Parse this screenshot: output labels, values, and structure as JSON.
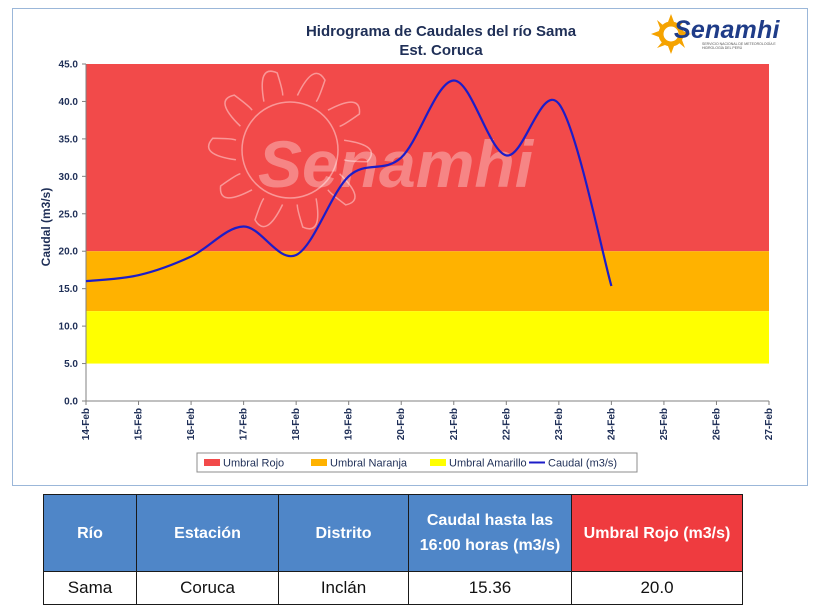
{
  "chart_data": {
    "type": "line",
    "title": "Hidrograma de Caudales del río Sama",
    "subtitle": "Est. Coruca",
    "xlabel": "",
    "ylabel": "Caudal (m3/s)",
    "ylim": [
      0,
      45
    ],
    "y_ticks": [
      "0.0",
      "5.0",
      "10.0",
      "15.0",
      "20.0",
      "25.0",
      "30.0",
      "35.0",
      "40.0",
      "45.0"
    ],
    "x_ticks": [
      "14-Feb",
      "15-Feb",
      "16-Feb",
      "17-Feb",
      "18-Feb",
      "19-Feb",
      "20-Feb",
      "21-Feb",
      "22-Feb",
      "23-Feb",
      "24-Feb",
      "25-Feb",
      "26-Feb",
      "27-Feb"
    ],
    "bands": [
      {
        "name": "Umbral Rojo",
        "from": 20,
        "to": 45,
        "color": "#f24a4a"
      },
      {
        "name": "Umbral Naranja",
        "from": 12,
        "to": 20,
        "color": "#ffb200"
      },
      {
        "name": "Umbral Amarillo",
        "from": 5,
        "to": 12,
        "color": "#ffff00"
      }
    ],
    "series": [
      {
        "name": "Caudal (m3/s)",
        "color": "#1d1dc8",
        "x": [
          0,
          1,
          2,
          3,
          4,
          5,
          6,
          7,
          8,
          9,
          10
        ],
        "values": [
          16.0,
          16.8,
          19.3,
          23.3,
          19.5,
          30.0,
          32.5,
          42.8,
          32.8,
          39.7,
          15.36
        ]
      }
    ],
    "legend": {
      "position": "bottom",
      "items": [
        {
          "label": "Umbral Rojo",
          "color": "#f24a4a",
          "kind": "box"
        },
        {
          "label": "Umbral Naranja",
          "color": "#ffb200",
          "kind": "box"
        },
        {
          "label": "Umbral Amarillo",
          "color": "#ffff00",
          "kind": "box"
        },
        {
          "label": "Caudal (m3/s)",
          "color": "#1d1dc8",
          "kind": "line"
        }
      ]
    },
    "watermark": "Senamhi"
  },
  "logo": {
    "text": "Senamhi",
    "subtext": "SERVICIO NACIONAL DE METEOROLOGÍA E HIDROLOGÍA DEL PERÚ"
  },
  "table": {
    "headers": [
      "Río",
      "Estación",
      "Distrito",
      "Caudal hasta las 16:00 horas (m3/s)",
      "Umbral  Rojo (m3/s)"
    ],
    "rows": [
      [
        "Sama",
        "Coruca",
        "Inclán",
        "15.36",
        "20.0"
      ]
    ]
  }
}
